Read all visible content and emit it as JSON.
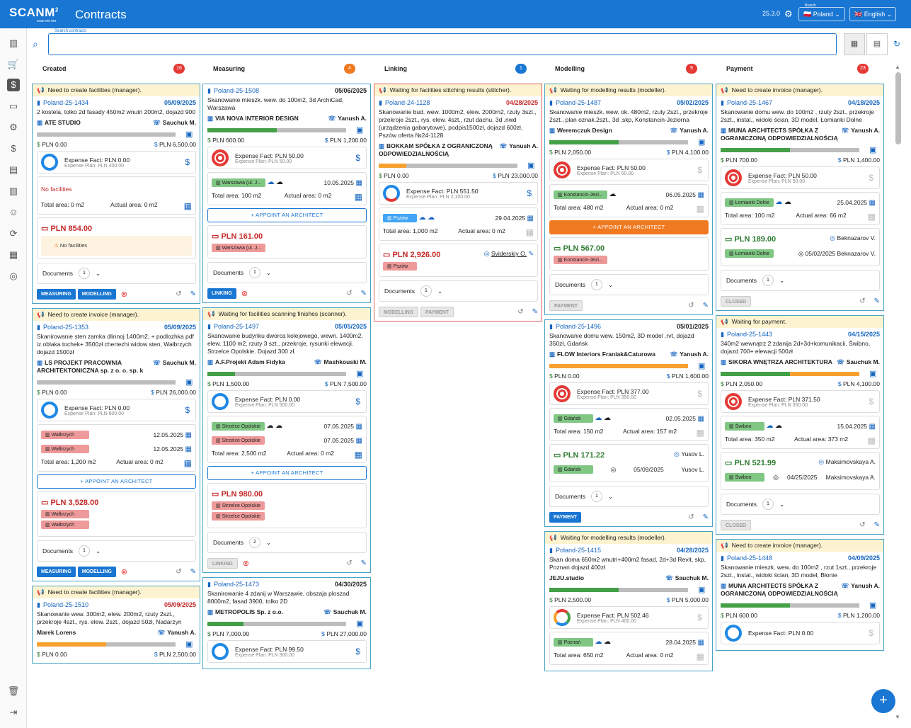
{
  "header": {
    "logo": "SCANM",
    "logo_sup": "2",
    "logo_sub": "scan me too",
    "title": "Contracts",
    "version": "25.3.0",
    "branch_caption": "Branch",
    "branch": "🇵🇱 Poland",
    "language": "🇬🇧 English"
  },
  "search": {
    "caption": "Search contracts",
    "value": ""
  },
  "columns": [
    {
      "title": "Created",
      "count": "16",
      "color": "#e53935"
    },
    {
      "title": "Measuring",
      "count": "4",
      "color": "#f07a22"
    },
    {
      "title": "Linking",
      "count": "1",
      "color": "#1976d2"
    },
    {
      "title": "Modelling",
      "count": "9",
      "color": "#e53935"
    },
    {
      "title": "Payment",
      "count": "23",
      "color": "#e53935"
    }
  ],
  "c1": {
    "a": {
      "warn": "Need to create facilities (manager).",
      "id": "Poland-25-1434",
      "date": "05/09/2025",
      "desc": "2 kostela, tolko 2d fasady 450m2 wnutri 200m2, dojazd 900",
      "cust": "ATE STUDIO",
      "mgr": "Sauchuk M.",
      "spent": "PLN 0.00",
      "due": "PLN 6,500.00",
      "ef": "Expense Fact: PLN 0.00",
      "ep": "Expense Plan: PLN 400.00",
      "nofac": "No facilities",
      "ta": "Total area: 0 m2",
      "aa": "Actual area: 0 m2",
      "total": "PLN 854.00",
      "nofw": "No facilities",
      "docs": "Documents",
      "docs_n": "1",
      "b1": "MEASURING",
      "b2": "MODELLING"
    },
    "b": {
      "warn": "Need to create invoice (manager).",
      "id": "Poland-25-1353",
      "date": "05/09/2025",
      "desc": "Skanirowanie sten zamka dlinnoj 1400m2, + podlozhka pdf iz oblaka tochek+ 3500zł chertezhi widow sten, Wałbrzych dojazd 1500zł",
      "cust": "LS PROJEKT PRACOWNIA ARCHITEKTONICZNA sp. z o. o. sp. k",
      "mgr": "Sauchuk M.",
      "spent": "PLN 0.00",
      "due": "PLN 26,000.00",
      "ef": "Expense Fact: PLN 0.00",
      "ep": "Expense Plan: PLN 800.00",
      "f1": "Wałbrzych",
      "f1d": "12.05.2025",
      "f2": "Wałbrzych",
      "f2d": "12.05.2025",
      "ta": "Total area: 1,200 m2",
      "aa": "Actual area: 0 m2",
      "appoint": "APPOINT AN ARCHITECT",
      "total": "PLN 3,528.00",
      "t1": "Wałbrzych",
      "t2": "Wałbrzych",
      "docs": "Documents",
      "docs_n": "1",
      "b1": "MEASURING",
      "b2": "MODELLING"
    },
    "c": {
      "warn": "Need to create facilities (manager).",
      "id": "Poland-25-1510",
      "date": "05/09/2025",
      "desc": "Skanowanie wew. 300m2, elew. 200m2, rzuty 2szt., przekroje 4szt., rys. elew. 2szt., dojazd 50zł, Nadarzyn",
      "cust": "Marek Lorens",
      "mgr": "Yanush A.",
      "spent": "PLN 0.00",
      "due": "PLN 2,500.00"
    }
  },
  "c2": {
    "a": {
      "id": "Poland-25-1508",
      "date": "05/06/2025",
      "desc": "Skanowanie mieszk. wew. do 100m2, 3d ArchiCad, Warszawa",
      "cust": "VIA NOVA INTERIOR DESIGN",
      "mgr": "Yanush A.",
      "spent": "PLN 600.00",
      "due": "PLN 1,200.00",
      "ef": "Expense Fact: PLN 50.00",
      "ep": "Expense Plan: PLN 50.00",
      "f1": "Warszawa (ul. J...",
      "f1d": "10.05.2025",
      "ta": "Total area: 100 m2",
      "aa": "Actual area: 0 m2",
      "appoint": "APPOINT AN ARCHITECT",
      "total": "PLN 161.00",
      "t1": "Warszawa (ul. J...",
      "docs": "Documents",
      "docs_n": "1",
      "b1": "LINKING"
    },
    "b": {
      "warn": "Waiting for facilities scanning finishes (scanner).",
      "id": "Poland-25-1497",
      "date": "05/05/2025",
      "desc": "Skanowanie budynku dworca kolejowego, wewn. 1400m2, elew. 1100 m2, rzuty 3 szt., przekroje, rysunki elewacji. Strzelce Opolskie. Dojazd 300 zł.",
      "cust": "A.F.Projekt Adam Fidyka",
      "mgr": "Mashkouski M.",
      "spent": "PLN 1,500.00",
      "due": "PLN 7,500.00",
      "ef": "Expense Fact: PLN 0.00",
      "ep": "Expense Plan: PLN 500.00",
      "f1": "Strzelce Opolskie",
      "f1d": "07.05.2025",
      "f2": "Strzelce Opolskie",
      "f2d": "07.05.2025",
      "ta": "Total area: 2,500 m2",
      "aa": "Actual area: 0 m2",
      "appoint": "APPOINT AN ARCHITECT",
      "total": "PLN 980.00",
      "t1": "Strzelce Opolskie",
      "t2": "Strzelce Opolskie",
      "docs": "Documents",
      "docs_n": "2",
      "b1": "LINKING"
    },
    "c": {
      "id": "Poland-25-1473",
      "date": "04/30/2025",
      "desc": "Skanirowanie 4 zdanij w Warszawie, obszaja ploszad 8000m2, fasad 3900, tolko 2D",
      "cust": "METROPOLIS Sp. z o.o.",
      "mgr": "Sauchuk M.",
      "spent": "PLN 7,000.00",
      "due": "PLN 27,000.00",
      "ef": "Expense Fact: PLN 99.50",
      "ep": "Expense Plan: PLN 300.00"
    }
  },
  "c3": {
    "a": {
      "warn": "Waiting for facilities stitching results (stitcher).",
      "id": "Poland-24-1128",
      "date": "04/28/2025",
      "desc": "Skanowanie bud. wew. 1000m2, elew. 2000m2, rzuty 3szt., przekroje 2szt., rys. elew. 4szt., rzut dachu, 3d .nwd (urządzenia gabarytowe), podpis1500zł, dojazd 600zł, Pszów oferta №24-1128",
      "cust": "BOKKAM SPÓŁKA Z OGRANICZONĄ ODPOWIEDZIALNOŚCIĄ",
      "mgr": "Yanush A.",
      "spent": "PLN 0.00",
      "due": "PLN 23,000.00",
      "ef": "Expense Fact: PLN 551.50",
      "ep": "Expense Plan: PLN 2,100.00",
      "f1": "Pszów",
      "f1d": "29.04.2025",
      "ta": "Total area: 1,000 m2",
      "aa": "Actual area: 0 m2",
      "total": "PLN 2,926.00",
      "who": "Sviderskiy O.",
      "t1": "Pszów",
      "docs": "Documents",
      "docs_n": "1",
      "b1": "MODELLING",
      "b2": "PAYMENT"
    }
  },
  "c4": {
    "a": {
      "warn": "Waiting for modelling results (modeller).",
      "id": "Poland-25-1487",
      "date": "05/02/2025",
      "desc": "Skanowanie mieszk. wew. ok. 480m2, rzuty 2szt., przekroje 2szt., plan oznak.2szt., 3d .skp, Konstancin-Jeziorna",
      "cust": "Weremczuk Design",
      "mgr": "Yanush A.",
      "spent": "PLN 2,050.00",
      "due": "PLN 4,100.00",
      "ef": "Expense Fact: PLN 50.00",
      "ep": "Expense Plan: PLN 50.00",
      "f1": "Konstancin-Jezi...",
      "f1d": "06.05.2025",
      "ta": "Total area: 480 m2",
      "aa": "Actual area: 0 m2",
      "appoint": "APPOINT AN ARCHITECT",
      "total": "PLN 567.00",
      "t1": "Konstancin-Jezi...",
      "docs": "Documents",
      "docs_n": "1",
      "b1": "PAYMENT"
    },
    "b": {
      "id": "Poland-25-1496",
      "date": "05/01/2025",
      "desc": "Skanowanie domu wew. 150m2, 3D model .rvt, dojazd 350zł, Gdańsk",
      "cust": "FLOW Interiors Franiak&Caturowa",
      "mgr": "Yanush A.",
      "spent": "PLN 0.00",
      "due": "PLN 1,600.00",
      "ef": "Expense Fact: PLN 377.00",
      "ep": "Expense Plan: PLN 350.00",
      "f1": "Gdańsk",
      "f1d": "02.05.2025",
      "ta": "Total area: 150 m2",
      "aa": "Actual area: 157 m2",
      "total": "PLN 171.22",
      "who": "Yusov L.",
      "t1": "Gdańsk",
      "t1d": "05/09/2025",
      "t1w": "Yusov L.",
      "docs": "Documents",
      "docs_n": "1",
      "b1": "PAYMENT"
    },
    "c": {
      "warn": "Waiting for modelling results (modeller).",
      "id": "Poland-25-1415",
      "date": "04/28/2025",
      "desc": "Skan doma 650m2 wnutri+400m2 fasad, 2d+3d Revit, skp, Poznan dojazd 400zł",
      "cust": "JEJU.studio",
      "mgr": "Sauchuk M.",
      "spent": "PLN 2,500.00",
      "due": "PLN 5,000.00",
      "ef": "Expense Fact: PLN 502.46",
      "ep": "Expense Plan: PLN 400.00",
      "f1": "Poznań",
      "f1d": "28.04.2025",
      "ta": "Total area: 650 m2",
      "aa": "Actual area: 0 m2"
    }
  },
  "c5": {
    "a": {
      "warn": "Need to create invoice (manager).",
      "id": "Poland-25-1467",
      "date": "04/18/2025",
      "desc": "Skanowanie domu wew. do 100m2 , rzuty 2szt., przekroje 2szt., instal., widoki ścian, 3D model, Łomianki Dolne",
      "cust": "MUNA ARCHITECTS SPÓŁKA Z OGRANICZONĄ ODPOWIEDZIALNOŚCIĄ",
      "mgr": "Yanush A.",
      "spent": "PLN 700.00",
      "due": "PLN 1,400.00",
      "ef": "Expense Fact: PLN 50.00",
      "ep": "Expense Plan: PLN 50.00",
      "f1": "Łomianki Dolne",
      "f1d": "25.04.2025",
      "ta": "Total area: 100 m2",
      "aa": "Actual area: 66 m2",
      "total": "PLN 189.00",
      "who": "Beknazarov V.",
      "t1": "Łomianki Dolne",
      "t1d": "05/02/2025",
      "t1w": "Beknazarov V.",
      "docs": "Documents",
      "docs_n": "1",
      "b1": "CLOSED"
    },
    "b": {
      "warn": "Waiting for payment.",
      "id": "Poland-25-1443",
      "date": "04/15/2025",
      "desc": "340m2 wewnątrz 2 zdanija 2d+3d+komunikacii, Świbno, dojazd 700+ elewacji 500zł",
      "cust": "SIKORA WNĘTRZA ARCHITEKTURA",
      "mgr": "Sauchuk M.",
      "spent": "PLN 2,050.00",
      "due": "PLN 4,100.00",
      "ef": "Expense Fact: PLN 371.50",
      "ep": "Expense Plan: PLN 350.00",
      "f1": "Świbno",
      "f1d": "15.04.2025",
      "ta": "Total area: 350 m2",
      "aa": "Actual area: 373 m2",
      "total": "PLN 521.99",
      "who": "Maksimovskaya A.",
      "t1": "Świbno",
      "t1d": "04/25/2025",
      "t1w": "Maksimovskaya A.",
      "docs": "Documents",
      "docs_n": "1",
      "b1": "CLOSED"
    },
    "c": {
      "warn": "Need to create invoice (manager).",
      "id": "Poland-25-1448",
      "date": "04/09/2025",
      "desc": "Skanowanie mieszk. wew. do 100m2 , rzut 1szt., przekroje 2szt., instal., widoki ścian, 3D model, Błonie",
      "cust": "MUNA ARCHITECTS SPÓŁKA Z OGRANICZONĄ ODPOWIEDZIALNOŚCIĄ",
      "mgr": "Yanush A.",
      "spent": "PLN 600.00",
      "due": "PLN 1,200.00",
      "ef": "Expense Fact: PLN 0.00"
    }
  },
  "icons": {
    "doc": "document-icon",
    "mgr": "phone-icon",
    "search": "search-icon"
  }
}
